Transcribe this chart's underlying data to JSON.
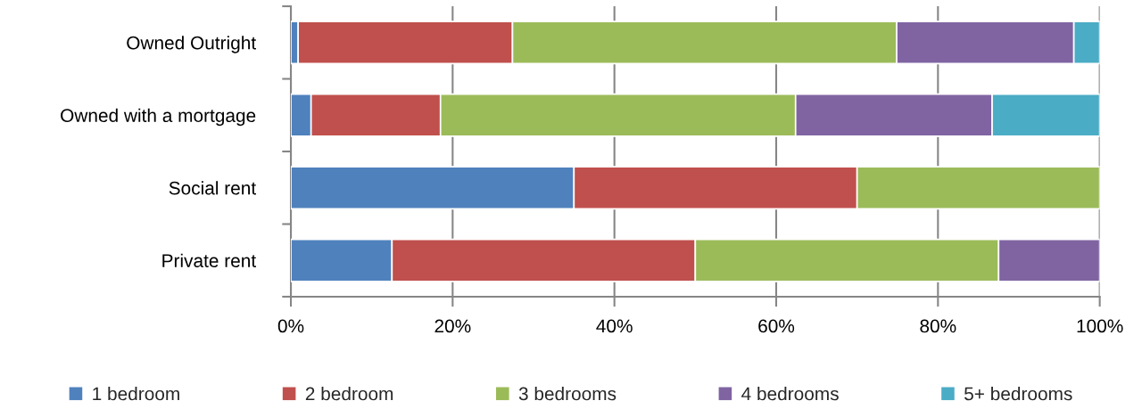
{
  "chart_data": {
    "type": "bar",
    "orientation": "horizontal",
    "stacked": true,
    "categories": [
      "Owned Outright",
      "Owned with a mortgage",
      "Social rent",
      "Private rent"
    ],
    "series": [
      {
        "name": "1 bedroom",
        "color": "#4f81bd",
        "values": [
          0.9,
          2.5,
          35.0,
          12.5
        ]
      },
      {
        "name": "2 bedroom",
        "color": "#c0504d",
        "values": [
          26.5,
          16.0,
          35.0,
          37.5
        ]
      },
      {
        "name": "3 bedrooms",
        "color": "#9bbb59",
        "values": [
          47.5,
          43.9,
          30.0,
          37.5
        ]
      },
      {
        "name": "4 bedrooms",
        "color": "#8064a2",
        "values": [
          21.9,
          24.3,
          null,
          12.5
        ]
      },
      {
        "name": "5+ bedrooms",
        "color": "#4bacc6",
        "values": [
          3.2,
          13.3,
          null,
          null
        ]
      }
    ],
    "xlim": [
      0,
      100
    ],
    "xticks": [
      {
        "value": 0,
        "label": "0%"
      },
      {
        "value": 20,
        "label": "20%"
      },
      {
        "value": 40,
        "label": "40%"
      },
      {
        "value": 60,
        "label": "60%"
      },
      {
        "value": 80,
        "label": "80%"
      },
      {
        "value": 100,
        "label": "100%"
      }
    ],
    "grid": "x",
    "legend": "bottom"
  }
}
